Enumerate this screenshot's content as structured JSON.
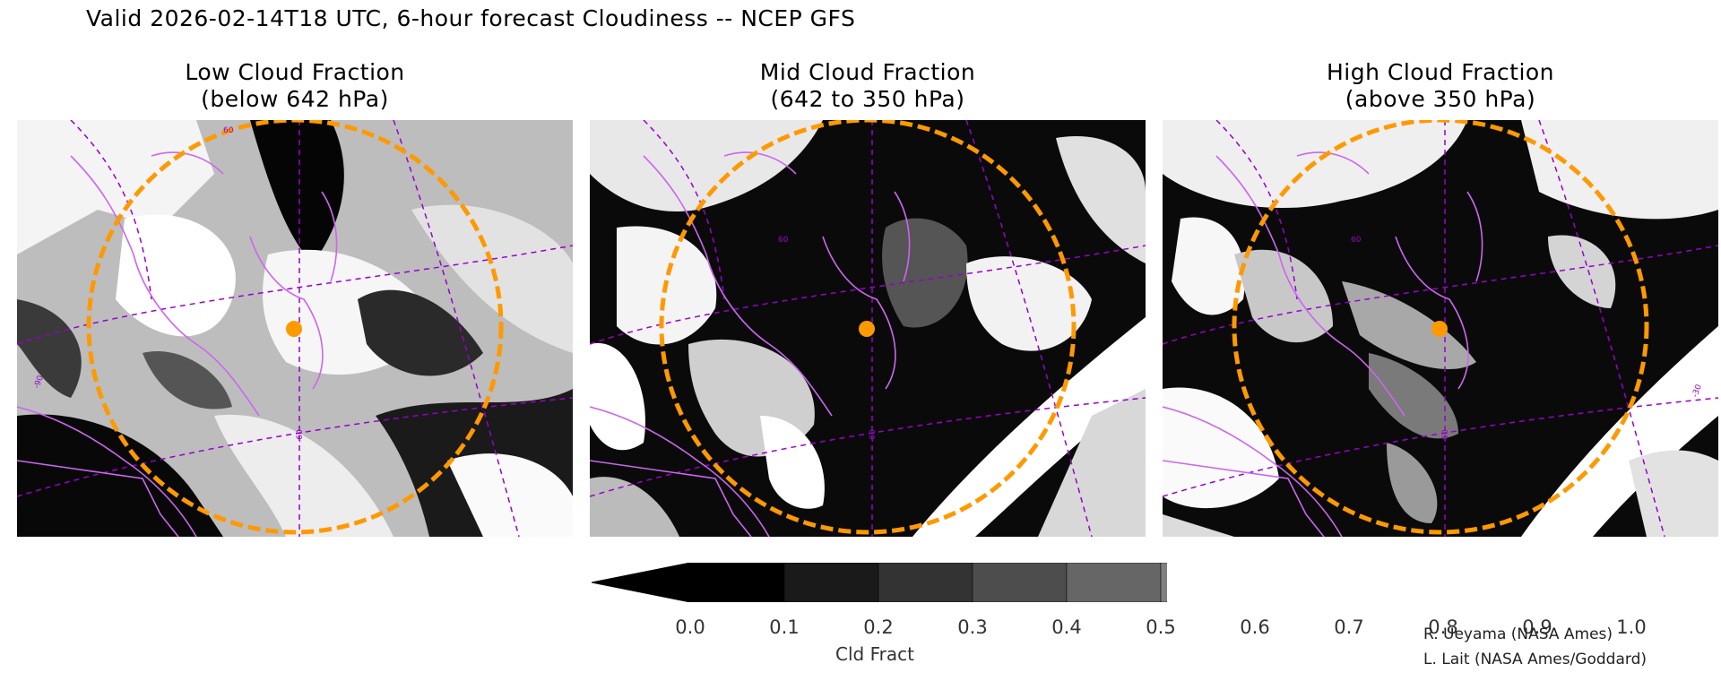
{
  "title": "Valid 2026-02-14T18 UTC, 6-hour forecast Cloudiness -- NCEP GFS",
  "panels": [
    {
      "line1": "Low Cloud Fraction",
      "line2": "(below 642 hPa)"
    },
    {
      "line1": "Mid Cloud Fraction",
      "line2": "(642 to 350 hPa)"
    },
    {
      "line1": "High Cloud Fraction",
      "line2": "(above 350 hPa)"
    }
  ],
  "map_labels": {
    "lat": "60",
    "lon_left": "-90",
    "lon_mid": "-60",
    "lon_right": "-30"
  },
  "colorbar": {
    "label": "Cld Fract",
    "ticks": [
      "0.0",
      "0.1",
      "0.2",
      "0.3",
      "0.4",
      "0.5",
      "0.6",
      "0.7",
      "0.8",
      "0.9",
      "1.0"
    ],
    "colors": [
      "#000000",
      "#1a1a1a",
      "#333333",
      "#4d4d4d",
      "#666666",
      "#808080",
      "#999999",
      "#b3b3b3",
      "#cccccc",
      "#e6e6e6"
    ],
    "under_color": "#000000",
    "over_color": "#ffffff"
  },
  "credits": [
    "R. Ueyama (NASA Ames)",
    "L. Lait (NASA Ames/Goddard)"
  ],
  "colors": {
    "coastline": "#cc66ee",
    "graticule": "#9900cc",
    "range_ring": "#ff9900",
    "marker": "#ff9900"
  }
}
